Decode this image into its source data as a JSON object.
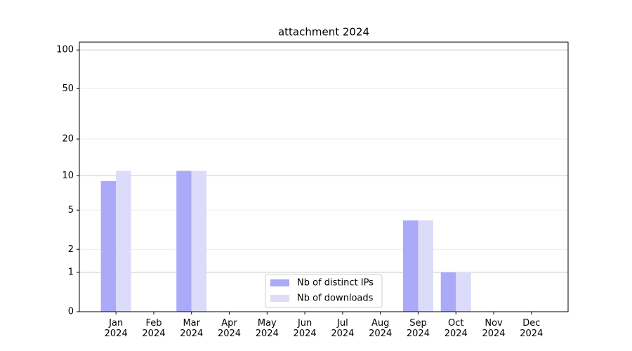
{
  "chart_data": {
    "type": "bar",
    "title": "attachment 2024",
    "categories": [
      "Jan 2024",
      "Feb 2024",
      "Mar 2024",
      "Apr 2024",
      "May 2024",
      "Jun 2024",
      "Jul 2024",
      "Aug 2024",
      "Sep 2024",
      "Oct 2024",
      "Nov 2024",
      "Dec 2024"
    ],
    "series": [
      {
        "name": "Nb of distinct IPs",
        "color": "#aaaaf8",
        "values": [
          9,
          0,
          11,
          0,
          0,
          0,
          0,
          0,
          4,
          1,
          0,
          0
        ]
      },
      {
        "name": "Nb of downloads",
        "color": "#dcdcfa",
        "values": [
          11,
          0,
          11,
          0,
          0,
          0,
          0,
          0,
          4,
          1,
          0,
          0
        ]
      }
    ],
    "yscale": "log1p",
    "ylim": [
      0,
      115
    ],
    "yticks": [
      0,
      1,
      2,
      5,
      10,
      20,
      50,
      100
    ],
    "grid": true,
    "legend": "lower center"
  }
}
